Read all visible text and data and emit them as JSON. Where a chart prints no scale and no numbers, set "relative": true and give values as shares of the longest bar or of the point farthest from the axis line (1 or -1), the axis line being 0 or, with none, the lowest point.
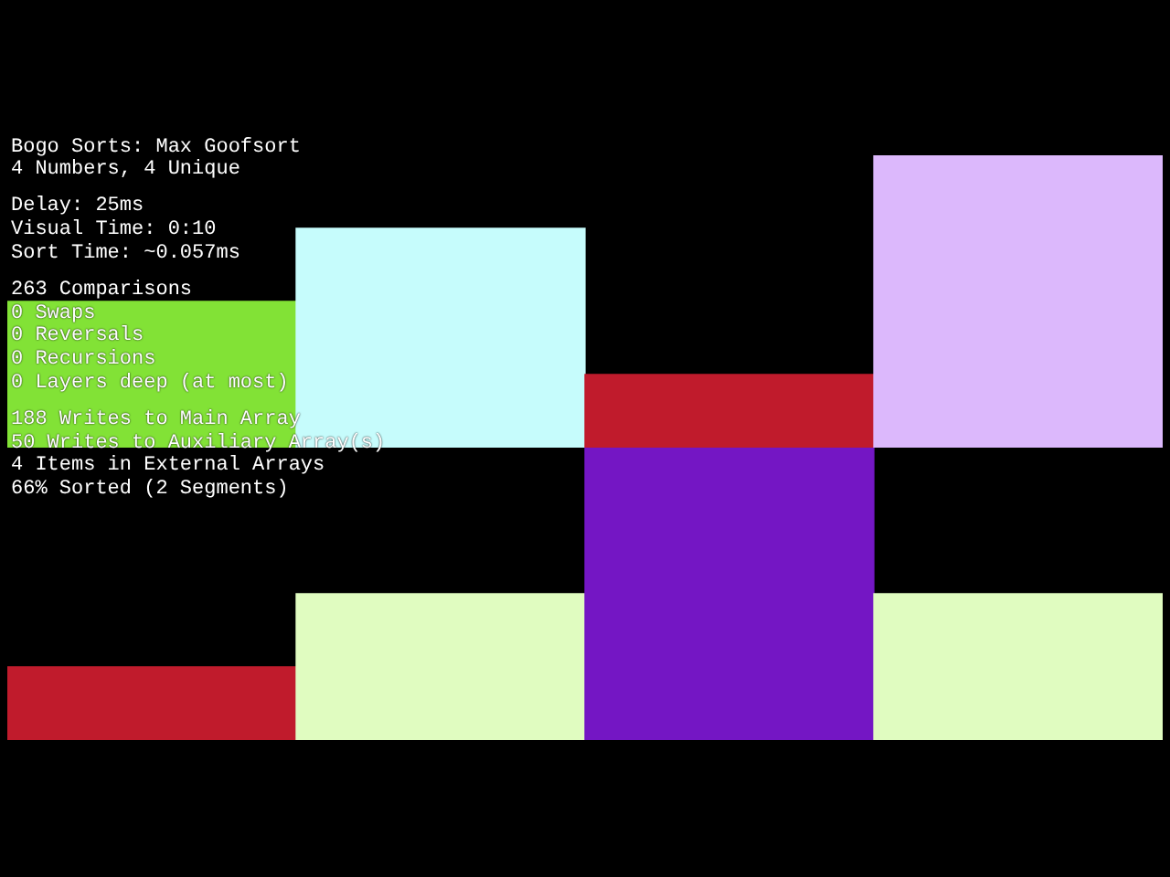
{
  "chart_data": [
    {
      "type": "other",
      "title": "Bogo Sorts: Max Goofsort",
      "subtitle": "4 Numbers, 4 Unique",
      "annotations": [
        "Delay: 25ms",
        "Visual Time: 0:10",
        "Sort Time: ~0.057ms",
        "263 Comparisons",
        "0 Swaps",
        "0 Reversals",
        "0 Recursions",
        "0 Layers deep (at most)",
        "188 Writes to Main Array",
        "50 Writes to Auxiliary Array(s)",
        "4 Items in External Arrays",
        "66% Sorted (2 Segments)"
      ]
    },
    {
      "type": "bar",
      "relative": true,
      "categories": [
        null,
        null,
        null,
        null
      ],
      "values": [
        0.5,
        0.75,
        0.25,
        1
      ],
      "colors": [
        "#82e236",
        "#c6fcfc",
        "#c01b2c",
        "#dcb8fc"
      ]
    },
    {
      "type": "bar",
      "relative": true,
      "categories": [
        null,
        null,
        null,
        null
      ],
      "values": [
        0.25,
        0.5,
        1,
        0.5
      ],
      "colors": [
        "#c01b2c",
        "#e0fcc0",
        "#7416c4",
        "#e0fcc0"
      ]
    }
  ]
}
